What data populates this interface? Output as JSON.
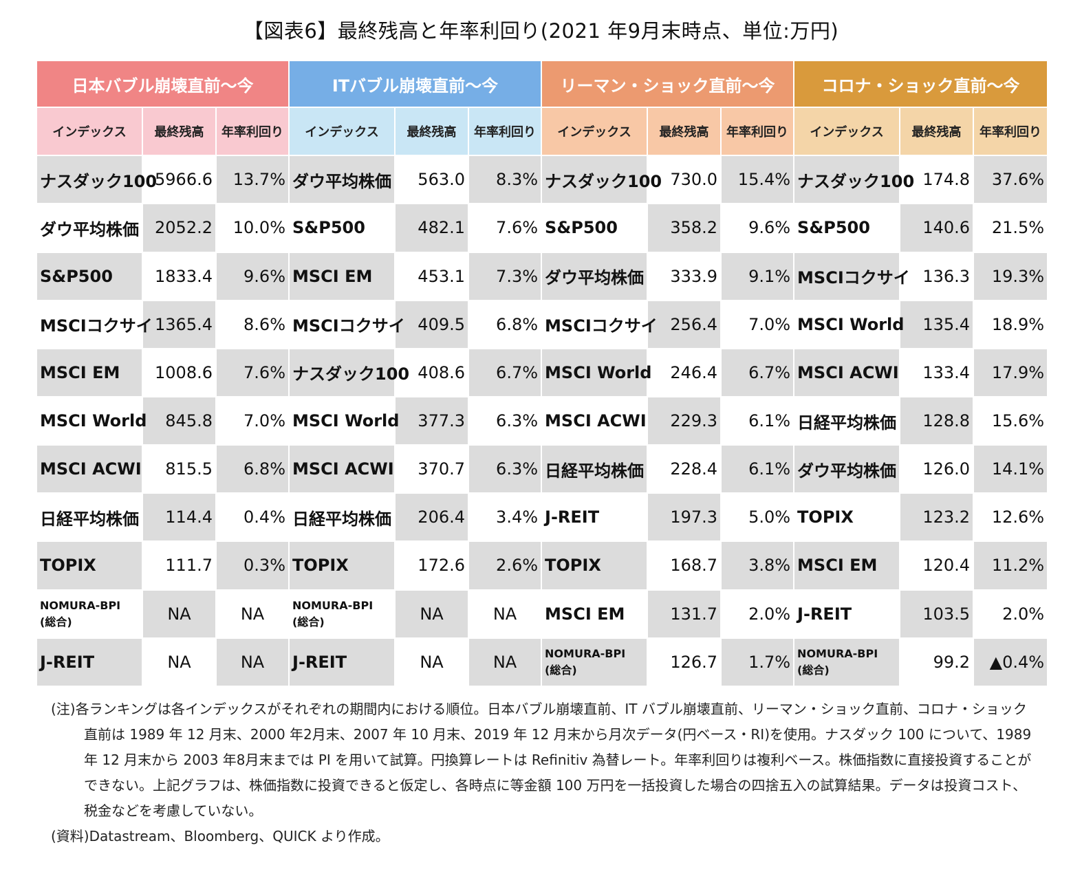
{
  "title": "【図表6】最終残高と年率利回り(2021 年9月末時点、単位:万円)",
  "colors": {
    "group1": "#f08585",
    "group2": "#76aee6",
    "group3": "#ec9a70",
    "group4": "#d99a3c",
    "sub1": "#f9c9d0",
    "sub2": "#c9e6f5",
    "sub3": "#f8c8a6",
    "sub4": "#f4d5a8",
    "gray": "#dcdcdc"
  },
  "groups": [
    {
      "title": "日本バブル崩壊直前～今",
      "headers": [
        "インデックス",
        "最終残高",
        "年率利回り"
      ],
      "rows": [
        {
          "index": "ナスダック100",
          "balance": "5966.6",
          "yield": "13.7%"
        },
        {
          "index": "ダウ平均株価",
          "balance": "2052.2",
          "yield": "10.0%"
        },
        {
          "index": "S&P500",
          "balance": "1833.4",
          "yield": "9.6%"
        },
        {
          "index": "MSCIコクサイ",
          "balance": "1365.4",
          "yield": "8.6%"
        },
        {
          "index": "MSCI EM",
          "balance": "1008.6",
          "yield": "7.6%"
        },
        {
          "index": "MSCI World",
          "balance": "845.8",
          "yield": "7.0%"
        },
        {
          "index": "MSCI ACWI",
          "balance": "815.5",
          "yield": "6.8%"
        },
        {
          "index": "日経平均株価",
          "balance": "114.4",
          "yield": "0.4%"
        },
        {
          "index": "TOPIX",
          "balance": "111.7",
          "yield": "0.3%"
        },
        {
          "index": "NOMURA-BPI",
          "index2": "(総合)",
          "balance": "NA",
          "yield": "NA"
        },
        {
          "index": "J-REIT",
          "balance": "NA",
          "yield": "NA"
        }
      ]
    },
    {
      "title": "ITバブル崩壊直前～今",
      "headers": [
        "インデックス",
        "最終残高",
        "年率利回り"
      ],
      "rows": [
        {
          "index": "ダウ平均株価",
          "balance": "563.0",
          "yield": "8.3%"
        },
        {
          "index": "S&P500",
          "balance": "482.1",
          "yield": "7.6%"
        },
        {
          "index": "MSCI EM",
          "balance": "453.1",
          "yield": "7.3%"
        },
        {
          "index": "MSCIコクサイ",
          "balance": "409.5",
          "yield": "6.8%"
        },
        {
          "index": "ナスダック100",
          "balance": "408.6",
          "yield": "6.7%"
        },
        {
          "index": "MSCI World",
          "balance": "377.3",
          "yield": "6.3%"
        },
        {
          "index": "MSCI ACWI",
          "balance": "370.7",
          "yield": "6.3%"
        },
        {
          "index": "日経平均株価",
          "balance": "206.4",
          "yield": "3.4%"
        },
        {
          "index": "TOPIX",
          "balance": "172.6",
          "yield": "2.6%"
        },
        {
          "index": "NOMURA-BPI",
          "index2": "(総合)",
          "balance": "NA",
          "yield": "NA"
        },
        {
          "index": "J-REIT",
          "balance": "NA",
          "yield": "NA"
        }
      ]
    },
    {
      "title": "リーマン・ショック直前～今",
      "headers": [
        "インデックス",
        "最終残高",
        "年率利回り"
      ],
      "rows": [
        {
          "index": "ナスダック100",
          "balance": "730.0",
          "yield": "15.4%"
        },
        {
          "index": "S&P500",
          "balance": "358.2",
          "yield": "9.6%"
        },
        {
          "index": "ダウ平均株価",
          "balance": "333.9",
          "yield": "9.1%"
        },
        {
          "index": "MSCIコクサイ",
          "balance": "256.4",
          "yield": "7.0%"
        },
        {
          "index": "MSCI World",
          "balance": "246.4",
          "yield": "6.7%"
        },
        {
          "index": "MSCI ACWI",
          "balance": "229.3",
          "yield": "6.1%"
        },
        {
          "index": "日経平均株価",
          "balance": "228.4",
          "yield": "6.1%"
        },
        {
          "index": "J-REIT",
          "balance": "197.3",
          "yield": "5.0%"
        },
        {
          "index": "TOPIX",
          "balance": "168.7",
          "yield": "3.8%"
        },
        {
          "index": "MSCI EM",
          "balance": "131.7",
          "yield": "2.0%"
        },
        {
          "index": "NOMURA-BPI",
          "index2": "(総合)",
          "balance": "126.7",
          "yield": "1.7%"
        }
      ]
    },
    {
      "title": "コロナ・ショック直前～今",
      "headers": [
        "インデックス",
        "最終残高",
        "年率利回り"
      ],
      "rows": [
        {
          "index": "ナスダック100",
          "balance": "174.8",
          "yield": "37.6%"
        },
        {
          "index": "S&P500",
          "balance": "140.6",
          "yield": "21.5%"
        },
        {
          "index": "MSCIコクサイ",
          "balance": "136.3",
          "yield": "19.3%"
        },
        {
          "index": "MSCI World",
          "balance": "135.4",
          "yield": "18.9%"
        },
        {
          "index": "MSCI ACWI",
          "balance": "133.4",
          "yield": "17.9%"
        },
        {
          "index": "日経平均株価",
          "balance": "128.8",
          "yield": "15.6%"
        },
        {
          "index": "ダウ平均株価",
          "balance": "126.0",
          "yield": "14.1%"
        },
        {
          "index": "TOPIX",
          "balance": "123.2",
          "yield": "12.6%"
        },
        {
          "index": "MSCI EM",
          "balance": "120.4",
          "yield": "11.2%"
        },
        {
          "index": "J-REIT",
          "balance": "103.5",
          "yield": "2.0%"
        },
        {
          "index": "NOMURA-BPI",
          "index2": "(総合)",
          "balance": "99.2",
          "yield": "▲0.4%"
        }
      ]
    }
  ],
  "note": "(注)各ランキングは各インデックスがそれぞれの期間内における順位。日本バブル崩壊直前、IT バブル崩壊直前、リーマン・ショック直前、コロナ・ショック直前は 1989 年 12 月末、2000 年2月末、2007 年 10 月末、2019 年 12 月末から月次データ(円ベース・RI)を使用。ナスダック 100 について、1989 年 12 月末から 2003 年8月末までは PI を用いて試算。円換算レートは Refinitiv 為替レート。年率利回りは複利ベース。株価指数に直接投資することができない。上記グラフは、株価指数に投資できると仮定し、各時点に等金額 100 万円を一括投資した場合の四捨五入の試算結果。データは投資コスト、税金などを考慮していない。",
  "source": "(資料)Datastream、Bloomberg、QUICK より作成。"
}
